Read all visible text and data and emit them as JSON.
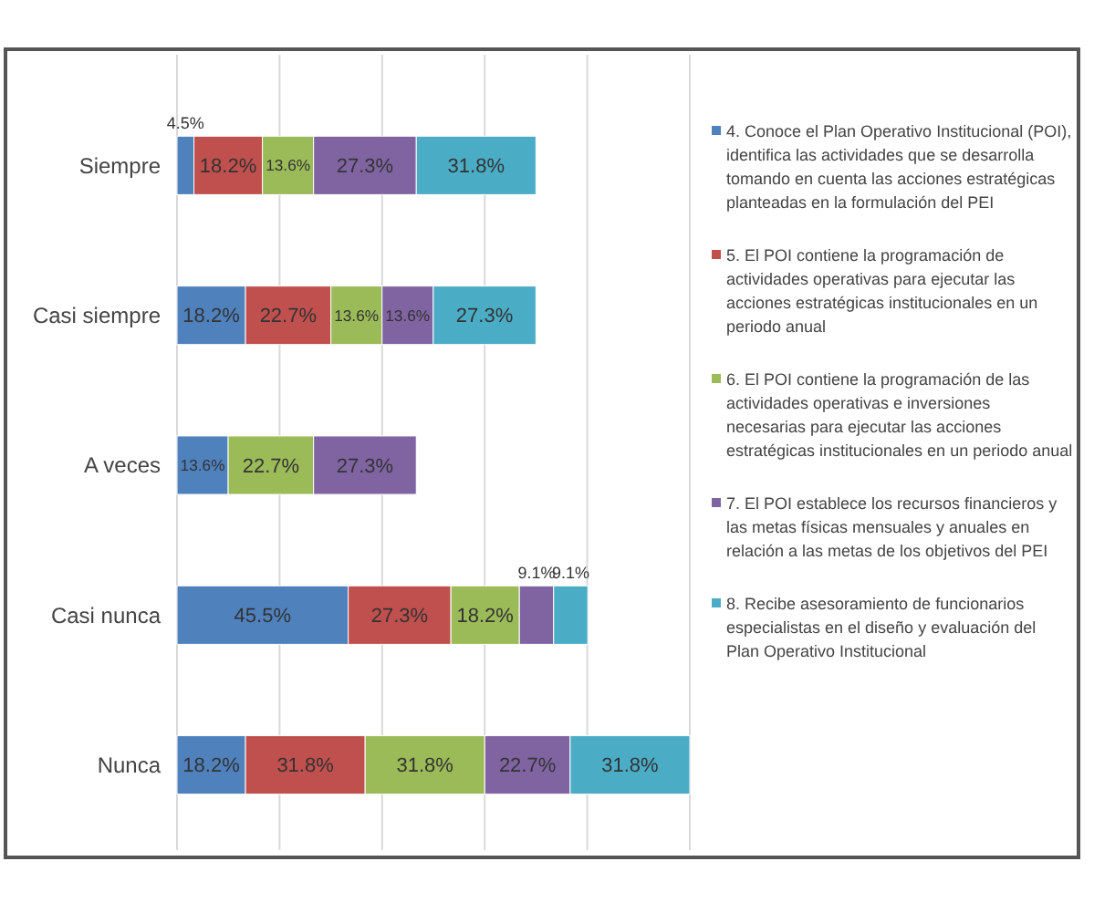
{
  "chart_data": {
    "type": "bar",
    "orientation": "horizontal",
    "stacked": true,
    "grid": true,
    "legend": "right",
    "categories": [
      "Siempre",
      "Casi siempre",
      "A veces",
      "Casi nunca",
      "Nunca"
    ],
    "series": [
      {
        "name": "4. Conoce el Plan Operativo Institucional (POI), identifica las actividades que se desarrolla tomando en cuenta las acciones estratégicas planteadas en la formulación del PEI",
        "color": "#4f81bd",
        "values": [
          4.5,
          18.2,
          13.6,
          45.5,
          18.2
        ],
        "value_labels": [
          "4.5%",
          "18.2%",
          "13.6%",
          "45.5%",
          "18.2%"
        ]
      },
      {
        "name": "5. El POI contiene la programación de actividades operativas   para ejecutar las acciones estratégicas institucionales en un periodo anual",
        "color": "#c0504d",
        "values": [
          18.2,
          22.7,
          null,
          27.3,
          31.8
        ],
        "value_labels": [
          "18.2%",
          "22.7%",
          null,
          "27.3%",
          "31.8%"
        ]
      },
      {
        "name": "6. El POI contiene la programación de las actividades operativas e inversiones necesarias para ejecutar las acciones estratégicas institucionales en un periodo anual",
        "color": "#9bbb59",
        "values": [
          13.6,
          13.6,
          22.7,
          18.2,
          31.8
        ],
        "value_labels": [
          "13.6%",
          "13.6%",
          "22.7%",
          "18.2%",
          "31.8%"
        ]
      },
      {
        "name": "7. El POI establece los recursos financieros y las metas físicas mensuales y anuales en relación a las metas de los objetivos del PEI",
        "color": "#8064a2",
        "values": [
          27.3,
          13.6,
          27.3,
          9.1,
          22.7
        ],
        "value_labels": [
          "27.3%",
          "13.6%",
          "27.3%",
          "9.1%",
          "22.7%"
        ]
      },
      {
        "name": "8. Recibe asesoramiento de funcionarios especialistas en el diseño y evaluación del Plan Operativo Institucional",
        "color": "#4bacc6",
        "values": [
          31.8,
          27.3,
          null,
          9.1,
          31.8
        ],
        "value_labels": [
          "31.8%",
          "27.3%",
          null,
          "9.1%",
          "31.8%"
        ]
      }
    ]
  }
}
